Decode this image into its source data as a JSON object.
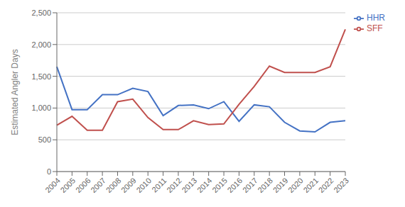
{
  "chart_data": {
    "type": "line",
    "categories": [
      "2004",
      "2005",
      "2006",
      "2007",
      "2008",
      "2009",
      "2010",
      "2011",
      "2012",
      "2013",
      "2014",
      "2015",
      "2016",
      "2017",
      "2018",
      "2019",
      "2020",
      "2021",
      "2022",
      "2023"
    ],
    "series": [
      {
        "name": "HHR",
        "color": "#4472C4",
        "values": [
          1650,
          975,
          975,
          1210,
          1210,
          1310,
          1260,
          880,
          1040,
          1050,
          990,
          1100,
          790,
          1050,
          1020,
          775,
          640,
          625,
          775,
          800
        ]
      },
      {
        "name": "SFF",
        "color": "#C0504D",
        "values": [
          730,
          870,
          650,
          650,
          1100,
          1140,
          850,
          660,
          660,
          800,
          740,
          750,
          1060,
          1340,
          1660,
          1560,
          1560,
          1560,
          1650,
          2240
        ]
      }
    ],
    "ylabel": "Estimated Angler Days",
    "ylim": [
      0,
      2500
    ],
    "yticks": [
      0,
      500,
      {
        "value": 1000,
        "label": "1,000"
      },
      {
        "value": 1500,
        "label": "1,500"
      },
      {
        "value": 2000,
        "label": "2,000"
      },
      {
        "value": 2500,
        "label": "2,500"
      }
    ],
    "grid": true,
    "legend": "upper right"
  }
}
